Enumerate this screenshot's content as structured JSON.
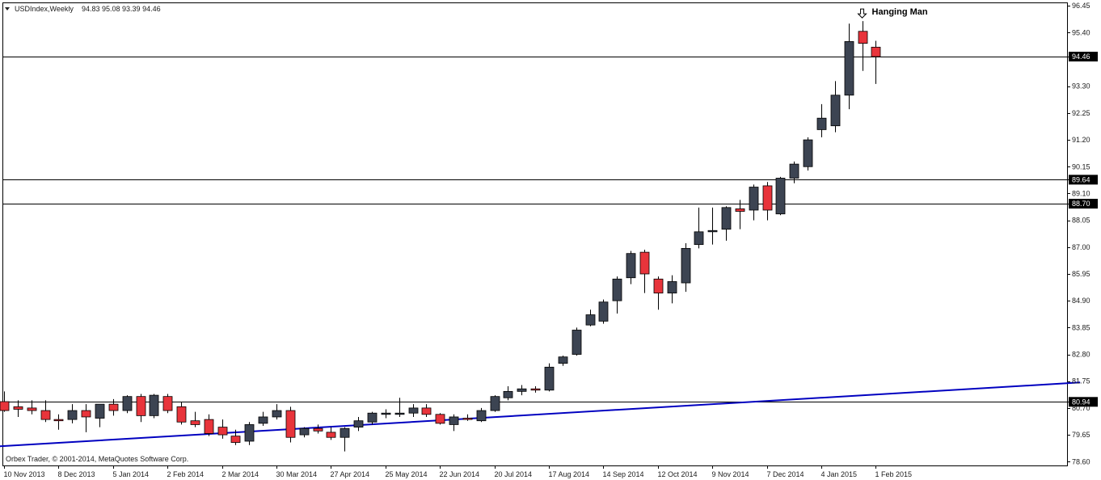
{
  "header": {
    "title": "USDIndex,Weekly",
    "ohlc": "94.83 95.08 93.39 94.46"
  },
  "footer": {
    "copyright": "Orbex Trader, © 2001-2014, MetaQuotes Software Corp."
  },
  "annotation": {
    "text": "Hanging Man"
  },
  "colors": {
    "bull": "#3c4452",
    "bear": "#e8343b",
    "wick": "#000000",
    "trendline": "#0000c0",
    "level_line": "#000000",
    "label_bg": "#000000",
    "label_fg": "#ffffff"
  },
  "chart_data": {
    "type": "candlestick",
    "ylim": [
      78.45,
      96.55
    ],
    "y_ticks": [
      "96.45",
      "95.40",
      "94.46",
      "93.30",
      "92.25",
      "91.20",
      "90.15",
      "89.64",
      "89.10",
      "88.70",
      "88.05",
      "87.00",
      "85.95",
      "84.90",
      "83.85",
      "82.80",
      "81.75",
      "80.94",
      "80.70",
      "79.65",
      "78.60"
    ],
    "x_tick_labels": [
      "10 Nov 2013",
      "8 Dec 2013",
      "5 Jan 2014",
      "2 Feb 2014",
      "2 Mar 2014",
      "30 Mar 2014",
      "27 Apr 2014",
      "25 May 2014",
      "22 Jun 2014",
      "20 Jul 2014",
      "17 Aug 2014",
      "14 Sep 2014",
      "12 Oct 2014",
      "9 Nov 2014",
      "7 Dec 2014",
      "4 Jan 2015",
      "1 Feb 2015"
    ],
    "candles": [
      {
        "o": 80.95,
        "h": 81.35,
        "l": 80.55,
        "c": 80.6
      },
      {
        "o": 80.75,
        "h": 81.0,
        "l": 80.35,
        "c": 80.65
      },
      {
        "o": 80.7,
        "h": 81.0,
        "l": 80.45,
        "c": 80.6
      },
      {
        "o": 80.6,
        "h": 81.0,
        "l": 80.15,
        "c": 80.25
      },
      {
        "o": 80.25,
        "h": 80.45,
        "l": 79.85,
        "c": 80.2
      },
      {
        "o": 80.25,
        "h": 80.85,
        "l": 80.1,
        "c": 80.6
      },
      {
        "o": 80.6,
        "h": 80.85,
        "l": 79.75,
        "c": 80.35
      },
      {
        "o": 80.3,
        "h": 80.85,
        "l": 79.95,
        "c": 80.85
      },
      {
        "o": 80.85,
        "h": 81.05,
        "l": 80.4,
        "c": 80.6
      },
      {
        "o": 80.6,
        "h": 81.2,
        "l": 80.5,
        "c": 81.15
      },
      {
        "o": 81.15,
        "h": 81.25,
        "l": 80.15,
        "c": 80.4
      },
      {
        "o": 80.4,
        "h": 81.25,
        "l": 80.3,
        "c": 81.2
      },
      {
        "o": 81.15,
        "h": 81.25,
        "l": 80.5,
        "c": 80.6
      },
      {
        "o": 80.75,
        "h": 80.95,
        "l": 80.05,
        "c": 80.15
      },
      {
        "o": 80.2,
        "h": 80.55,
        "l": 79.95,
        "c": 80.05
      },
      {
        "o": 80.25,
        "h": 80.45,
        "l": 79.6,
        "c": 79.7
      },
      {
        "o": 79.95,
        "h": 80.25,
        "l": 79.5,
        "c": 79.65
      },
      {
        "o": 79.6,
        "h": 79.85,
        "l": 79.25,
        "c": 79.35
      },
      {
        "o": 79.4,
        "h": 80.15,
        "l": 79.25,
        "c": 80.05
      },
      {
        "o": 80.1,
        "h": 80.55,
        "l": 80.0,
        "c": 80.35
      },
      {
        "o": 80.35,
        "h": 80.85,
        "l": 80.25,
        "c": 80.6
      },
      {
        "o": 80.6,
        "h": 80.75,
        "l": 79.35,
        "c": 79.55
      },
      {
        "o": 79.65,
        "h": 79.95,
        "l": 79.55,
        "c": 79.9
      },
      {
        "o": 79.9,
        "h": 80.05,
        "l": 79.7,
        "c": 79.8
      },
      {
        "o": 79.75,
        "h": 79.95,
        "l": 79.45,
        "c": 79.55
      },
      {
        "o": 79.55,
        "h": 79.95,
        "l": 79.0,
        "c": 79.9
      },
      {
        "o": 79.95,
        "h": 80.35,
        "l": 79.8,
        "c": 80.2
      },
      {
        "o": 80.15,
        "h": 80.55,
        "l": 80.05,
        "c": 80.5
      },
      {
        "o": 80.45,
        "h": 80.65,
        "l": 80.3,
        "c": 80.5
      },
      {
        "o": 80.45,
        "h": 81.1,
        "l": 80.35,
        "c": 80.5
      },
      {
        "o": 80.5,
        "h": 80.85,
        "l": 80.35,
        "c": 80.7
      },
      {
        "o": 80.7,
        "h": 80.85,
        "l": 80.35,
        "c": 80.45
      },
      {
        "o": 80.45,
        "h": 80.5,
        "l": 80.05,
        "c": 80.1
      },
      {
        "o": 80.05,
        "h": 80.45,
        "l": 79.8,
        "c": 80.35
      },
      {
        "o": 80.3,
        "h": 80.45,
        "l": 80.2,
        "c": 80.25
      },
      {
        "o": 80.2,
        "h": 80.7,
        "l": 80.15,
        "c": 80.6
      },
      {
        "o": 80.6,
        "h": 81.2,
        "l": 80.55,
        "c": 81.15
      },
      {
        "o": 81.1,
        "h": 81.55,
        "l": 81.0,
        "c": 81.35
      },
      {
        "o": 81.35,
        "h": 81.6,
        "l": 81.2,
        "c": 81.45
      },
      {
        "o": 81.45,
        "h": 81.55,
        "l": 81.3,
        "c": 81.4
      },
      {
        "o": 81.4,
        "h": 82.45,
        "l": 81.35,
        "c": 82.3
      },
      {
        "o": 82.45,
        "h": 82.75,
        "l": 82.35,
        "c": 82.7
      },
      {
        "o": 82.8,
        "h": 83.85,
        "l": 82.75,
        "c": 83.75
      },
      {
        "o": 83.95,
        "h": 84.55,
        "l": 83.9,
        "c": 84.35
      },
      {
        "o": 84.1,
        "h": 84.95,
        "l": 84.0,
        "c": 84.85
      },
      {
        "o": 84.9,
        "h": 85.85,
        "l": 84.4,
        "c": 85.75
      },
      {
        "o": 85.8,
        "h": 86.85,
        "l": 85.55,
        "c": 86.75
      },
      {
        "o": 86.8,
        "h": 86.9,
        "l": 85.2,
        "c": 85.95
      },
      {
        "o": 85.75,
        "h": 85.85,
        "l": 84.55,
        "c": 85.2
      },
      {
        "o": 85.2,
        "h": 85.9,
        "l": 84.8,
        "c": 85.65
      },
      {
        "o": 85.6,
        "h": 87.15,
        "l": 85.25,
        "c": 86.95
      },
      {
        "o": 87.1,
        "h": 88.55,
        "l": 86.95,
        "c": 87.6
      },
      {
        "o": 87.6,
        "h": 88.55,
        "l": 87.1,
        "c": 87.65
      },
      {
        "o": 87.7,
        "h": 88.6,
        "l": 87.25,
        "c": 88.55
      },
      {
        "o": 88.5,
        "h": 88.85,
        "l": 87.7,
        "c": 88.4
      },
      {
        "o": 88.45,
        "h": 89.45,
        "l": 88.05,
        "c": 89.35
      },
      {
        "o": 89.4,
        "h": 89.55,
        "l": 88.05,
        "c": 88.45
      },
      {
        "o": 88.3,
        "h": 89.75,
        "l": 88.25,
        "c": 89.7
      },
      {
        "o": 89.7,
        "h": 90.35,
        "l": 89.5,
        "c": 90.25
      },
      {
        "o": 90.15,
        "h": 91.3,
        "l": 90.0,
        "c": 91.2
      },
      {
        "o": 91.6,
        "h": 92.6,
        "l": 91.3,
        "c": 92.05
      },
      {
        "o": 91.75,
        "h": 93.5,
        "l": 91.5,
        "c": 92.95
      },
      {
        "o": 92.95,
        "h": 95.75,
        "l": 92.4,
        "c": 95.05
      },
      {
        "o": 95.45,
        "h": 95.85,
        "l": 93.9,
        "c": 94.98
      },
      {
        "o": 94.83,
        "h": 95.08,
        "l": 93.39,
        "c": 94.46
      }
    ],
    "horizontal_levels": [
      94.46,
      89.64,
      88.7,
      80.94
    ],
    "trendline": {
      "from": {
        "bar": -0.3,
        "price": 79.2
      },
      "to": {
        "bar": 79.0,
        "price": 81.7
      }
    },
    "annotation_bar": 63
  }
}
